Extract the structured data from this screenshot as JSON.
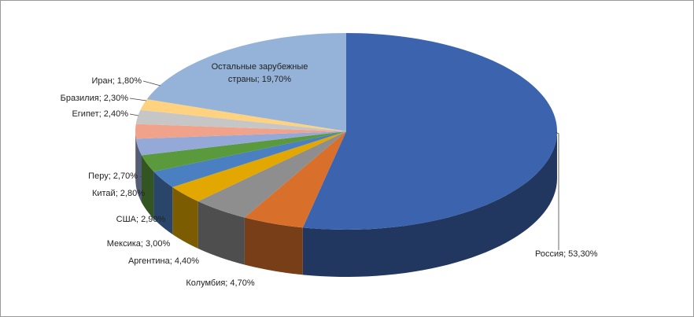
{
  "chart_data": {
    "type": "pie3d",
    "values": [
      53.3,
      4.7,
      4.4,
      3.0,
      2.9,
      2.8,
      2.7,
      2.4,
      2.3,
      1.8,
      19.7
    ],
    "value_labels": [
      "Россия; 53,30%",
      "Колумбия; 4,70%",
      "Аргентина; 4,40%",
      "Мексика; 3,00%",
      "США; 2,90%",
      "Китай; 2,80%",
      "Перу; 2,70%",
      "Египет; 2,40%",
      "Бразилия; 2,30%",
      "Иран; 1,80%",
      [
        "Остальные зарубежные",
        "страны; 19,70%"
      ]
    ],
    "colors": [
      "#3c64ae",
      "#d8702b",
      "#8e8e8e",
      "#e2a700",
      "#4a7fc1",
      "#5b9a3c",
      "#95a9d9",
      "#f0a38a",
      "#c6c6c6",
      "#ffd27f",
      "#95b3d9"
    ]
  }
}
